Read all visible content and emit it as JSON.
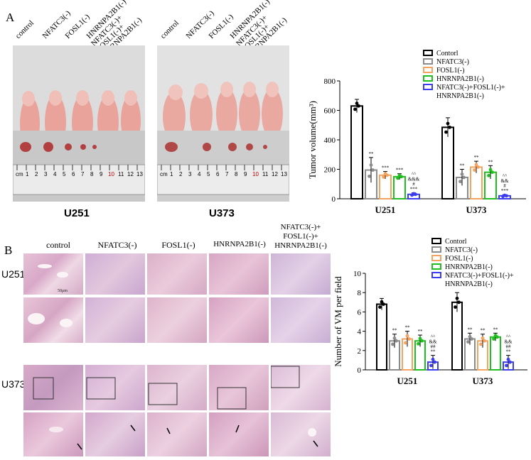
{
  "panel_a": {
    "letter": "A",
    "photo_labels_left": [
      "control",
      "NFATC3(-)",
      "FOSL1(-)",
      "HNRNPA2B1(-)",
      "NFATC3(-)+\nFOSL1(-)+\nHNRNPA2B1(-)"
    ],
    "photo_labels_right": [
      "control",
      "NFATC3(-)",
      "FOSL1(-)",
      "HNRNPA2B1(-)",
      "NFATC3(-)+\nFOSL1(-)+\nHNRNPA2B1(-)"
    ],
    "photo_captions": [
      "U251",
      "U373"
    ],
    "ruler_numbers": [
      "cm",
      "1",
      "2",
      "3",
      "4",
      "5",
      "6",
      "7",
      "8",
      "9",
      "10",
      "11",
      "12",
      "13"
    ]
  },
  "panel_b": {
    "letter": "B",
    "column_labels": [
      "control",
      "NFATC3(-)",
      "FOSL1(-)",
      "HNRNPA2B1(-)",
      "NFATC3(-)+\nFOSL1(-)+\nHNRNPA2B1(-)"
    ],
    "row_labels": [
      "U251",
      "U373"
    ],
    "scale_label": "50μm"
  },
  "colors": {
    "control": "#000000",
    "nfatc3": "#8c8c8c",
    "fosl1": "#f4a460",
    "hnrnpa2b1": "#1fbf1f",
    "combo": "#3c3cf0"
  },
  "chart_data": [
    {
      "type": "bar",
      "ylabel": "Tumor volume(mm³)",
      "ylim": [
        0,
        800
      ],
      "yticks": [
        "0",
        "200",
        "400",
        "600",
        "800"
      ],
      "categories": [
        "U251",
        "U373"
      ],
      "legend": {
        "placement": "top-right",
        "entries": [
          "Contorl",
          "NFATC3(-)",
          "FOSL1(-)",
          "HNRNPA2B1(-)",
          "NFATC3(-)+FOSL1(-)+\nHNRNPA2B1(-)"
        ]
      },
      "series": [
        {
          "name": "Contorl",
          "values": [
            630,
            485
          ],
          "err": [
            45,
            65
          ],
          "sig": [
            "",
            ""
          ]
        },
        {
          "name": "NFATC3(-)",
          "values": [
            195,
            145
          ],
          "err": [
            85,
            55
          ],
          "sig": [
            "**",
            "**"
          ]
        },
        {
          "name": "FOSL1(-)",
          "values": [
            160,
            215
          ],
          "err": [
            25,
            40
          ],
          "sig": [
            "***",
            "**"
          ]
        },
        {
          "name": "HNRNPA2B1(-)",
          "values": [
            150,
            180
          ],
          "err": [
            20,
            45
          ],
          "sig": [
            "***",
            "**"
          ]
        },
        {
          "name": "NFATC3(-)+FOSL1(-)+\nHNRNPA2B1(-)",
          "values": [
            30,
            20
          ],
          "err": [
            10,
            8
          ],
          "sig": [
            "^^\n&&&\n#\n***",
            "^^\n&&\n#\n***"
          ]
        }
      ]
    },
    {
      "type": "bar",
      "ylabel": "Number of VM per field",
      "ylim": [
        0,
        10
      ],
      "yticks": [
        "0",
        "2",
        "4",
        "6",
        "8",
        "10"
      ],
      "categories": [
        "U251",
        "U373"
      ],
      "legend": {
        "placement": "top-right",
        "entries": [
          "Contorl",
          "NFATC3(-)",
          "FOSL1(-)",
          "HNRNPA2B1(-)",
          "NFATC3(-)+FOSL1(-)+\nHNRNPA2B1(-)"
        ]
      },
      "series": [
        {
          "name": "Contorl",
          "values": [
            6.8,
            7.0
          ],
          "err": [
            0.6,
            1.0
          ],
          "sig": [
            "",
            ""
          ]
        },
        {
          "name": "NFATC3(-)",
          "values": [
            3.0,
            3.2
          ],
          "err": [
            0.7,
            0.6
          ],
          "sig": [
            "**",
            "**"
          ]
        },
        {
          "name": "FOSL1(-)",
          "values": [
            3.2,
            3.0
          ],
          "err": [
            0.8,
            0.7
          ],
          "sig": [
            "**",
            "**"
          ]
        },
        {
          "name": "HNRNPA2B1(-)",
          "values": [
            3.0,
            3.4
          ],
          "err": [
            0.6,
            0.4
          ],
          "sig": [
            "**",
            "**"
          ]
        },
        {
          "name": "NFATC3(-)+FOSL1(-)+\nHNRNPA2B1(-)",
          "values": [
            0.8,
            0.8
          ],
          "err": [
            0.7,
            0.7
          ],
          "sig": [
            "^^\n&&\n##\n**",
            "^^\n&&\n##\n**"
          ]
        }
      ]
    }
  ]
}
